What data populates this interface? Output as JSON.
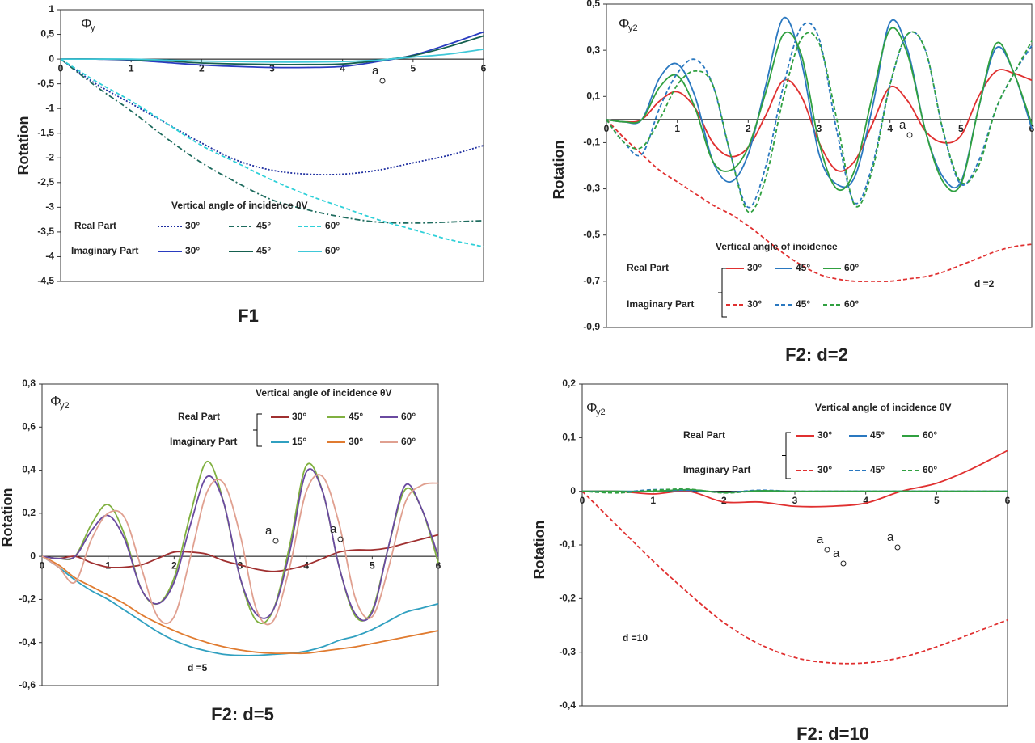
{
  "chart_data": [
    {
      "type": "line",
      "title": "F1",
      "y_label": "Rotation",
      "symbol": "Φ",
      "symbol_sub": "y",
      "legend_title": "Vertical angle of incidence θV",
      "x": [
        0,
        0.5,
        1,
        1.5,
        2,
        2.5,
        3,
        3.5,
        4,
        4.5,
        5,
        5.5,
        6
      ],
      "xlim": [
        0,
        6
      ],
      "xticks": [
        0,
        1,
        2,
        3,
        4,
        5,
        6
      ],
      "ylim": [
        -4.5,
        1
      ],
      "yticks": [
        {
          "value": -4.5,
          "label": "-4,5"
        },
        -4,
        {
          "value": -3.5,
          "label": "-3,5"
        },
        -3,
        {
          "value": -2.5,
          "label": "-2,5"
        },
        -2,
        {
          "value": -1.5,
          "label": "-1,5"
        },
        -1,
        {
          "value": -0.5,
          "label": "-0,5"
        },
        0,
        {
          "value": 0.5,
          "label": "0,5"
        },
        1
      ],
      "groups": [
        {
          "name": "Real Part",
          "series": [
            {
              "name": "30°",
              "color": "#1f2fa0",
              "dash": "dotted",
              "values": [
                0,
                -0.5,
                -0.9,
                -1.3,
                -1.7,
                -2.05,
                -2.25,
                -2.33,
                -2.33,
                -2.25,
                -2.1,
                -1.95,
                -1.75
              ]
            },
            {
              "name": "45°",
              "color": "#1e6b5e",
              "dash": "dashdot",
              "values": [
                0,
                -0.55,
                -1.05,
                -1.6,
                -2.1,
                -2.5,
                -2.85,
                -3.05,
                -3.2,
                -3.3,
                -3.32,
                -3.3,
                -3.27
              ]
            },
            {
              "name": "60°",
              "color": "#2fd0d8",
              "dash": "dashed",
              "values": [
                0,
                -0.45,
                -0.85,
                -1.3,
                -1.75,
                -2.1,
                -2.45,
                -2.75,
                -3.0,
                -3.25,
                -3.45,
                -3.65,
                -3.8
              ]
            }
          ]
        },
        {
          "name": "Imaginary Part",
          "series": [
            {
              "name": "30°",
              "color": "#2a3cc0",
              "dash": "solid",
              "values": [
                0,
                0,
                -0.02,
                -0.07,
                -0.12,
                -0.15,
                -0.17,
                -0.17,
                -0.15,
                -0.05,
                0.08,
                0.3,
                0.55
              ]
            },
            {
              "name": "45°",
              "color": "#15604f",
              "dash": "solid",
              "values": [
                0,
                0,
                -0.01,
                -0.04,
                -0.08,
                -0.1,
                -0.11,
                -0.11,
                -0.1,
                -0.03,
                0.07,
                0.25,
                0.47
              ]
            },
            {
              "name": "60°",
              "color": "#40c8d8",
              "dash": "solid",
              "values": [
                0,
                0,
                0,
                -0.02,
                -0.04,
                -0.05,
                -0.06,
                -0.06,
                -0.05,
                -0.02,
                0.04,
                0.1,
                0.2
              ]
            }
          ]
        }
      ],
      "annotations": [
        "a"
      ]
    },
    {
      "type": "line",
      "title": "F2: d=2",
      "y_label": "Rotation",
      "symbol": "Φ",
      "symbol_sub": "y2",
      "legend_title": "Vertical angle of incidence",
      "x": [
        0,
        0.25,
        0.5,
        0.75,
        1,
        1.25,
        1.5,
        1.75,
        2,
        2.25,
        2.5,
        2.75,
        3,
        3.25,
        3.5,
        3.75,
        4,
        4.25,
        4.5,
        4.75,
        5,
        5.25,
        5.5,
        5.75,
        6
      ],
      "xlim": [
        0,
        6
      ],
      "xticks": [
        0,
        1,
        2,
        3,
        4,
        5,
        6
      ],
      "ylim": [
        -0.9,
        0.5
      ],
      "yticks": [
        {
          "value": -0.9,
          "label": "-0,9"
        },
        {
          "value": -0.7,
          "label": "-0,7"
        },
        {
          "value": -0.5,
          "label": "-0,5"
        },
        {
          "value": -0.3,
          "label": "-0,3"
        },
        {
          "value": -0.1,
          "label": "-0,1"
        },
        {
          "value": 0.1,
          "label": "0,1"
        },
        {
          "value": 0.3,
          "label": "0,3"
        },
        {
          "value": 0.5,
          "label": "0,5"
        }
      ],
      "groups": [
        {
          "name": "Real Part",
          "series": [
            {
              "name": "30°",
              "color": "#e03030",
              "dash": "solid",
              "values": [
                0,
                -0.01,
                0,
                0.08,
                0.12,
                0.05,
                -0.1,
                -0.16,
                -0.12,
                0.02,
                0.17,
                0.1,
                -0.1,
                -0.22,
                -0.18,
                -0.02,
                0.14,
                0.08,
                -0.05,
                -0.1,
                -0.07,
                0.1,
                0.21,
                0.2,
                0.17
              ]
            },
            {
              "name": "45°",
              "color": "#2a78c0",
              "dash": "solid",
              "values": [
                0,
                -0.01,
                0,
                0.18,
                0.24,
                0.1,
                -0.18,
                -0.27,
                -0.15,
                0.15,
                0.44,
                0.25,
                -0.15,
                -0.28,
                -0.25,
                0.05,
                0.42,
                0.3,
                -0.05,
                -0.25,
                -0.27,
                0.05,
                0.31,
                0.2,
                -0.04
              ]
            },
            {
              "name": "60°",
              "color": "#30a040",
              "dash": "solid",
              "values": [
                0,
                -0.01,
                0,
                0.14,
                0.19,
                0.05,
                -0.18,
                -0.22,
                -0.12,
                0.12,
                0.37,
                0.28,
                -0.1,
                -0.3,
                -0.22,
                0.1,
                0.39,
                0.28,
                -0.05,
                -0.27,
                -0.28,
                0.05,
                0.33,
                0.2,
                -0.02
              ]
            }
          ]
        },
        {
          "name": "Imaginary Part",
          "series": [
            {
              "name": "30°",
              "color": "#e03030",
              "dash": "dashed",
              "values": [
                0,
                -0.08,
                -0.15,
                -0.22,
                -0.27,
                -0.32,
                -0.37,
                -0.41,
                -0.46,
                -0.52,
                -0.58,
                -0.63,
                -0.67,
                -0.69,
                -0.7,
                -0.7,
                -0.7,
                -0.69,
                -0.68,
                -0.66,
                -0.63,
                -0.6,
                -0.57,
                -0.55,
                -0.54
              ]
            },
            {
              "name": "45°",
              "color": "#2a78c0",
              "dash": "dashed",
              "values": [
                0,
                -0.1,
                -0.15,
                0.05,
                0.2,
                0.26,
                0.15,
                -0.15,
                -0.38,
                -0.2,
                0.15,
                0.4,
                0.35,
                -0.05,
                -0.36,
                -0.2,
                0.15,
                0.37,
                0.3,
                -0.05,
                -0.28,
                -0.18,
                0.05,
                0.2,
                0.32
              ]
            },
            {
              "name": "60°",
              "color": "#30a040",
              "dash": "dashed",
              "values": [
                0,
                -0.1,
                -0.12,
                0,
                0.15,
                0.21,
                0.15,
                -0.15,
                -0.4,
                -0.25,
                0.1,
                0.35,
                0.33,
                0,
                -0.37,
                -0.22,
                0.15,
                0.37,
                0.3,
                -0.05,
                -0.27,
                -0.2,
                0.05,
                0.2,
                0.34
              ]
            }
          ]
        }
      ],
      "annotations": [
        "a",
        "d =2"
      ]
    },
    {
      "type": "line",
      "title": "F2: d=5",
      "y_label": "Rotation",
      "symbol": "Φ",
      "symbol_sub": "y2",
      "legend_title": "Vertical angle of incidence θV",
      "x": [
        0,
        0.25,
        0.5,
        0.75,
        1,
        1.25,
        1.5,
        1.75,
        2,
        2.25,
        2.5,
        2.75,
        3,
        3.25,
        3.5,
        3.75,
        4,
        4.25,
        4.5,
        4.75,
        5,
        5.25,
        5.5,
        5.75,
        6
      ],
      "xlim": [
        0,
        6
      ],
      "xticks": [
        0,
        1,
        2,
        3,
        4,
        5,
        6
      ],
      "ylim": [
        -0.6,
        0.8
      ],
      "yticks": [
        {
          "value": -0.6,
          "label": "-0,6"
        },
        {
          "value": -0.4,
          "label": "-0,4"
        },
        {
          "value": -0.2,
          "label": "-0,2"
        },
        0,
        {
          "value": 0.2,
          "label": "0,2"
        },
        {
          "value": 0.4,
          "label": "0,4"
        },
        {
          "value": 0.6,
          "label": "0,6"
        },
        {
          "value": 0.8,
          "label": "0,8"
        }
      ],
      "groups": [
        {
          "name": "Real Part",
          "series": [
            {
              "name": "30°",
              "color": "#a03030",
              "dash": "solid",
              "values": [
                0,
                -0.01,
                0,
                -0.03,
                -0.05,
                -0.05,
                -0.04,
                -0.01,
                0.02,
                0.02,
                0.01,
                -0.02,
                -0.04,
                -0.06,
                -0.07,
                -0.06,
                -0.04,
                -0.01,
                0.02,
                0.03,
                0.03,
                0.04,
                0.06,
                0.08,
                0.1
              ]
            },
            {
              "name": "45°",
              "color": "#80b040",
              "dash": "solid",
              "values": [
                0,
                -0.01,
                0,
                0.15,
                0.24,
                0.1,
                -0.15,
                -0.22,
                -0.1,
                0.2,
                0.44,
                0.25,
                -0.1,
                -0.3,
                -0.25,
                0.05,
                0.42,
                0.3,
                -0.05,
                -0.28,
                -0.25,
                0.05,
                0.31,
                0.22,
                -0.03
              ]
            },
            {
              "name": "60°",
              "color": "#6a4aa0",
              "dash": "solid",
              "values": [
                0,
                -0.01,
                0,
                0.12,
                0.19,
                0.08,
                -0.15,
                -0.22,
                -0.12,
                0.15,
                0.37,
                0.25,
                -0.1,
                -0.27,
                -0.25,
                0.02,
                0.39,
                0.3,
                -0.05,
                -0.27,
                -0.26,
                0.05,
                0.33,
                0.22,
                0
              ]
            }
          ]
        },
        {
          "name": "Imaginary Part",
          "series": [
            {
              "name": "15°",
              "color": "#30a0c0",
              "dash": "solid",
              "values": [
                0,
                -0.05,
                -0.11,
                -0.16,
                -0.2,
                -0.25,
                -0.3,
                -0.35,
                -0.39,
                -0.42,
                -0.44,
                -0.455,
                -0.46,
                -0.46,
                -0.455,
                -0.45,
                -0.44,
                -0.42,
                -0.39,
                -0.37,
                -0.34,
                -0.3,
                -0.26,
                -0.24,
                -0.22
              ]
            },
            {
              "name": "30°",
              "color": "#e07b30",
              "dash": "solid",
              "values": [
                0,
                -0.04,
                -0.1,
                -0.14,
                -0.18,
                -0.22,
                -0.27,
                -0.31,
                -0.345,
                -0.375,
                -0.4,
                -0.42,
                -0.435,
                -0.445,
                -0.45,
                -0.45,
                -0.45,
                -0.44,
                -0.43,
                -0.42,
                -0.405,
                -0.39,
                -0.375,
                -0.36,
                -0.345
              ]
            },
            {
              "name": "60°",
              "color": "#e0a090",
              "dash": "solid",
              "values": [
                0,
                -0.05,
                -0.12,
                0.08,
                0.2,
                0.18,
                -0.05,
                -0.28,
                -0.28,
                0,
                0.3,
                0.34,
                0.1,
                -0.25,
                -0.3,
                -0.05,
                0.3,
                0.37,
                0.15,
                -0.2,
                -0.28,
                -0.05,
                0.25,
                0.33,
                0.34
              ]
            }
          ]
        }
      ],
      "annotations": [
        "a",
        "a",
        "d =5"
      ]
    },
    {
      "type": "line",
      "title": "F2: d=10",
      "y_label": "Rotation",
      "symbol": "Φ",
      "symbol_sub": "y2",
      "legend_title": "Vertical angle of incidence θV",
      "x": [
        0,
        0.5,
        1,
        1.5,
        2,
        2.5,
        3,
        3.5,
        4,
        4.5,
        5,
        5.5,
        6
      ],
      "xlim": [
        0,
        6
      ],
      "xticks": [
        0,
        1,
        2,
        3,
        4,
        5,
        6
      ],
      "ylim": [
        -0.4,
        0.2
      ],
      "yticks": [
        {
          "value": -0.4,
          "label": "-0,4"
        },
        {
          "value": -0.3,
          "label": "-0,3"
        },
        {
          "value": -0.2,
          "label": "-0,2"
        },
        {
          "value": -0.1,
          "label": "-0,1"
        },
        0,
        {
          "value": 0.1,
          "label": "0,1"
        },
        {
          "value": 0.2,
          "label": "0,2"
        }
      ],
      "groups": [
        {
          "name": "Real Part",
          "series": [
            {
              "name": "30°",
              "color": "#e03030",
              "dash": "solid",
              "values": [
                0,
                0,
                -0.005,
                0,
                -0.02,
                -0.02,
                -0.028,
                -0.028,
                -0.022,
                0,
                0.015,
                0.042,
                0.076
              ]
            },
            {
              "name": "45°",
              "color": "#2a78c0",
              "dash": "solid",
              "values": [
                0,
                0,
                0,
                0.002,
                -0.002,
                0.001,
                0,
                0,
                0,
                0,
                0,
                0,
                0
              ]
            },
            {
              "name": "60°",
              "color": "#30a040",
              "dash": "solid",
              "values": [
                0,
                0,
                0,
                0.003,
                -0.002,
                0.001,
                0,
                0,
                0,
                0,
                0,
                0,
                0
              ]
            }
          ]
        },
        {
          "name": "Imaginary Part",
          "series": [
            {
              "name": "30°",
              "color": "#e03030",
              "dash": "dashed",
              "values": [
                0,
                -0.065,
                -0.13,
                -0.19,
                -0.245,
                -0.285,
                -0.31,
                -0.32,
                -0.32,
                -0.31,
                -0.29,
                -0.265,
                -0.24
              ]
            },
            {
              "name": "45°",
              "color": "#2a78c0",
              "dash": "dashed",
              "values": [
                0,
                -0.002,
                0.003,
                0.002,
                -0.002,
                0.002,
                0,
                0,
                0,
                0,
                0,
                0,
                0
              ]
            },
            {
              "name": "60°",
              "color": "#30a040",
              "dash": "dashed",
              "values": [
                0,
                -0.003,
                0.002,
                0.004,
                -0.003,
                0.001,
                0,
                0,
                0,
                0,
                0,
                0,
                0
              ]
            }
          ]
        }
      ],
      "annotations": [
        "a",
        "a",
        "a",
        "d =10"
      ]
    }
  ]
}
